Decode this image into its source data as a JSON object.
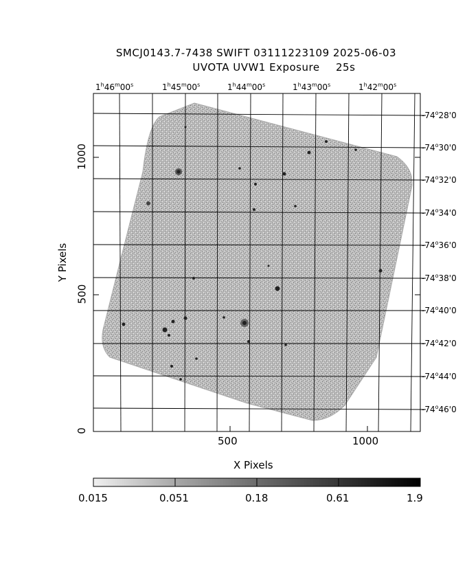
{
  "header": {
    "title_line1": "SMCJ0143.7-7438 SWIFT 03111223109 2025-06-03",
    "title_line2": "UVOTA UVW1 Exposure",
    "exposure": "25s"
  },
  "axes": {
    "xlabel": "X Pixels",
    "ylabel": "Y Pixels",
    "xticks": [
      "500",
      "1000"
    ],
    "yticks": [
      "0",
      "500",
      "1000"
    ],
    "ra_labels": [
      {
        "h": "1",
        "m": "46",
        "s": "00"
      },
      {
        "h": "1",
        "m": "45",
        "s": "00"
      },
      {
        "h": "1",
        "m": "44",
        "s": "00"
      },
      {
        "h": "1",
        "m": "43",
        "s": "00"
      },
      {
        "h": "1",
        "m": "42",
        "s": "00"
      }
    ],
    "dec_labels": [
      {
        "deg": "-74",
        "min": "28",
        "sec": "0"
      },
      {
        "deg": "-74",
        "min": "30",
        "sec": "0"
      },
      {
        "deg": "-74",
        "min": "32",
        "sec": "0"
      },
      {
        "deg": "-74",
        "min": "34",
        "sec": "0"
      },
      {
        "deg": "-74",
        "min": "36",
        "sec": "0"
      },
      {
        "deg": "-74",
        "min": "38",
        "sec": "0"
      },
      {
        "deg": "-74",
        "min": "40",
        "sec": "0"
      },
      {
        "deg": "-74",
        "min": "42",
        "sec": "0"
      },
      {
        "deg": "-74",
        "min": "44",
        "sec": "0"
      },
      {
        "deg": "-74",
        "min": "46",
        "sec": "0"
      }
    ]
  },
  "colorbar": {
    "ticks": [
      "0.015",
      "0.051",
      "0.18",
      "0.61",
      "1.9"
    ]
  }
}
